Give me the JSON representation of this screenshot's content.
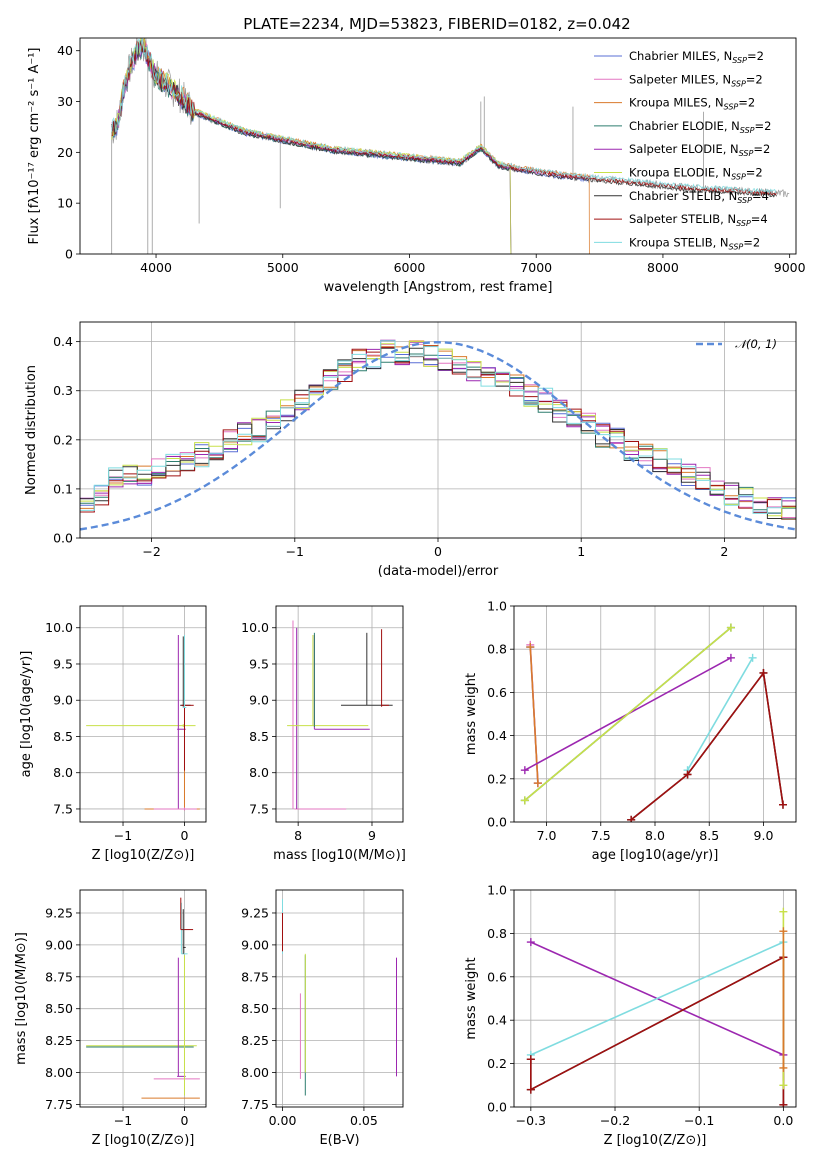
{
  "colors": {
    "chabrier_miles": "#5a6fd6",
    "salpeter_miles": "#e377c2",
    "kroupa_miles": "#d97a2b",
    "chabrier_elodie": "#2e7d6f",
    "salpeter_elodie": "#9c27b0",
    "kroupa_elodie": "#c8e04a",
    "chabrier_stelib": "#333333",
    "salpeter_stelib": "#a01010",
    "kroupa_stelib": "#7fdce0",
    "gaussian": "#5b8bd9",
    "grid": "#b0b0b0"
  },
  "chart_data": [
    {
      "id": "spectrum",
      "type": "line",
      "title": "PLATE=2234, MJD=53823, FIBERID=0182, z=0.042",
      "xlabel": "wavelength [Angstrom, rest frame]",
      "ylabel": "Flux [fλ10⁻¹⁷ erg cm⁻² s⁻¹ A⁻¹]",
      "xlim": [
        3400,
        9050
      ],
      "ylim": [
        0,
        42.5
      ],
      "xticks": [
        4000,
        5000,
        6000,
        7000,
        8000,
        9000
      ],
      "yticks": [
        0,
        10,
        20,
        30,
        40
      ],
      "legend_placement": "top-right",
      "observed": {
        "color": "#999999",
        "x": [
          3650,
          3700,
          3750,
          3800,
          3850,
          3900,
          3950,
          4000,
          4100,
          4200,
          4300,
          4400,
          4500,
          4600,
          4700,
          4800,
          4900,
          5000,
          5200,
          5400,
          5600,
          5800,
          6000,
          6200,
          6400,
          6563,
          6700,
          6800,
          7000,
          7200,
          7400,
          7600,
          7800,
          8000,
          8200,
          8400,
          8600,
          8800,
          9000
        ],
        "y": [
          24,
          26,
          33,
          37,
          40,
          41,
          38,
          35,
          33,
          31,
          28,
          27,
          26,
          25,
          24,
          23.5,
          23,
          22.5,
          21.5,
          20.5,
          20,
          19.5,
          19,
          18.5,
          18,
          21,
          17.5,
          17,
          16.2,
          15.5,
          15,
          14.5,
          14,
          13.5,
          13,
          12.7,
          12.4,
          12.1,
          11.8
        ]
      },
      "spikes": [
        {
          "x": 3650,
          "y": 0
        },
        {
          "x": 3935,
          "y": 0
        },
        {
          "x": 3970,
          "y": 0
        },
        {
          "x": 4340,
          "y": 6
        },
        {
          "x": 4980,
          "y": 9
        },
        {
          "x": 6563,
          "y": 30
        },
        {
          "x": 6590,
          "y": 31
        },
        {
          "x": 7290,
          "y": 29
        },
        {
          "x": 8320,
          "y": 28
        }
      ],
      "series": [
        {
          "name": "Chabrier MILES, N_SSP=2",
          "color_key": "chabrier_miles",
          "end": 7420,
          "drop": false
        },
        {
          "name": "Salpeter MILES, N_SSP=2",
          "color_key": "salpeter_miles",
          "end": 7420,
          "drop": false
        },
        {
          "name": "Kroupa MILES, N_SSP=2",
          "color_key": "kroupa_miles",
          "end": 7420,
          "drop": true
        },
        {
          "name": "Chabrier ELODIE, N_SSP=2",
          "color_key": "chabrier_elodie",
          "end": 6800,
          "drop": true
        },
        {
          "name": "Salpeter ELODIE, N_SSP=2",
          "color_key": "salpeter_elodie",
          "end": 6800,
          "drop": true
        },
        {
          "name": "Kroupa ELODIE, N_SSP=2",
          "color_key": "kroupa_elodie",
          "end": 6800,
          "drop": true
        },
        {
          "name": "Chabrier STELIB, N_SSP=4",
          "color_key": "chabrier_stelib",
          "end": 8900,
          "drop": false
        },
        {
          "name": "Salpeter STELIB, N_SSP=4",
          "color_key": "salpeter_stelib",
          "end": 8900,
          "drop": false
        },
        {
          "name": "Kroupa STELIB, N_SSP=2",
          "color_key": "kroupa_stelib",
          "end": 8900,
          "drop": false
        }
      ]
    },
    {
      "id": "residuals",
      "type": "line",
      "xlabel": "(data-model)/error",
      "ylabel": "Normed distribution",
      "xlim": [
        -2.5,
        2.5
      ],
      "ylim": [
        0,
        0.44
      ],
      "xticks": [
        -2,
        -1,
        0,
        1,
        2
      ],
      "yticks": [
        0.0,
        0.1,
        0.2,
        0.3,
        0.4
      ],
      "legend": "𝒩(0, 1)",
      "legend_placement": "top-right",
      "bin_width": 0.1,
      "base_hist": [
        0.07,
        0.09,
        0.12,
        0.13,
        0.13,
        0.14,
        0.15,
        0.16,
        0.17,
        0.18,
        0.2,
        0.21,
        0.22,
        0.24,
        0.26,
        0.28,
        0.3,
        0.32,
        0.34,
        0.36,
        0.37,
        0.38,
        0.37,
        0.38,
        0.37,
        0.36,
        0.35,
        0.34,
        0.33,
        0.32,
        0.31,
        0.29,
        0.28,
        0.26,
        0.25,
        0.23,
        0.21,
        0.2,
        0.18,
        0.17,
        0.16,
        0.14,
        0.13,
        0.12,
        0.1,
        0.09,
        0.08,
        0.07,
        0.06,
        0.06
      ]
    },
    {
      "id": "z_age",
      "type": "scatter",
      "xlabel": "Z [log10(Z/Z⊙)]",
      "ylabel": "age  [log10(age/yr)]",
      "xlim": [
        -1.7,
        0.35
      ],
      "ylim": [
        7.32,
        10.3
      ],
      "xticks": [
        -1,
        0
      ],
      "yticks": [
        7.5,
        8.0,
        8.5,
        9.0,
        9.5,
        10.0
      ]
    },
    {
      "id": "mass_age",
      "type": "scatter",
      "xlabel": "mass [log10(M/M⊙)]",
      "ylabel": "",
      "xlim": [
        7.7,
        9.42
      ],
      "ylim": [
        7.32,
        10.3
      ],
      "xticks": [
        8,
        9
      ],
      "yticks": [
        7.5,
        8.0,
        8.5,
        9.0,
        9.5,
        10.0
      ]
    },
    {
      "id": "age_weight",
      "type": "line",
      "xlabel": "age  [log10(age/yr)]",
      "ylabel": "mass weight",
      "xlim": [
        6.7,
        9.3
      ],
      "ylim": [
        0,
        1.0
      ],
      "xticks": [
        7.0,
        7.5,
        8.0,
        8.5,
        9.0
      ],
      "yticks": [
        0.0,
        0.2,
        0.4,
        0.6,
        0.8,
        1.0
      ],
      "series": [
        {
          "color_key": "chabrier_miles",
          "x": [
            6.85,
            6.92
          ],
          "y": [
            0.81,
            0.18
          ]
        },
        {
          "color_key": "salpeter_miles",
          "x": [
            6.85,
            6.92
          ],
          "y": [
            0.82,
            0.18
          ]
        },
        {
          "color_key": "kroupa_miles",
          "x": [
            6.85,
            6.92
          ],
          "y": [
            0.81,
            0.18
          ]
        },
        {
          "color_key": "chabrier_elodie",
          "x": [
            6.8,
            8.7
          ],
          "y": [
            0.1,
            0.9
          ]
        },
        {
          "color_key": "salpeter_elodie",
          "x": [
            6.8,
            8.7
          ],
          "y": [
            0.24,
            0.76
          ]
        },
        {
          "color_key": "kroupa_elodie",
          "x": [
            6.8,
            8.7
          ],
          "y": [
            0.1,
            0.9
          ]
        },
        {
          "color_key": "kroupa_stelib",
          "x": [
            8.3,
            8.9
          ],
          "y": [
            0.24,
            0.76
          ]
        },
        {
          "color_key": "chabrier_stelib",
          "x": [
            7.78,
            8.3,
            9.0,
            9.18
          ],
          "y": [
            0.01,
            0.22,
            0.69,
            0.08
          ]
        },
        {
          "color_key": "salpeter_stelib",
          "x": [
            7.78,
            8.3,
            9.0,
            9.18
          ],
          "y": [
            0.01,
            0.22,
            0.69,
            0.08
          ]
        }
      ]
    },
    {
      "id": "z_mass",
      "type": "scatter",
      "xlabel": "Z [log10(Z/Z⊙)]",
      "ylabel": "mass [log10(M/M⊙)]",
      "xlim": [
        -1.7,
        0.35
      ],
      "ylim": [
        7.73,
        9.43
      ],
      "xticks": [
        -1,
        0
      ],
      "yticks": [
        7.75,
        8.0,
        8.25,
        8.5,
        8.75,
        9.0,
        9.25
      ]
    },
    {
      "id": "ebv_mass",
      "type": "scatter",
      "xlabel": "E(B-V)",
      "ylabel": "",
      "xlim": [
        -0.004,
        0.074
      ],
      "ylim": [
        7.73,
        9.43
      ],
      "xticks": [
        0.0,
        0.05
      ],
      "yticks": [
        7.75,
        8.0,
        8.25,
        8.5,
        8.75,
        9.0,
        9.25
      ]
    },
    {
      "id": "z_weight",
      "type": "line",
      "xlabel": "Z [log10(Z/Z⊙)]",
      "ylabel": "mass weight",
      "xlim": [
        -0.32,
        0.015
      ],
      "ylim": [
        0,
        1.0
      ],
      "xticks": [
        -0.3,
        -0.2,
        -0.1,
        0.0
      ],
      "yticks": [
        0.0,
        0.2,
        0.4,
        0.6,
        0.8,
        1.0
      ],
      "series": [
        {
          "color_key": "salpeter_elodie",
          "x": [
            -0.3,
            0.0
          ],
          "y": [
            0.76,
            0.24
          ]
        },
        {
          "color_key": "kroupa_stelib",
          "x": [
            -0.3,
            0.0
          ],
          "y": [
            0.24,
            0.76
          ]
        },
        {
          "color_key": "chabrier_stelib",
          "x": [
            -0.3,
            -0.3,
            0.0,
            0.0
          ],
          "y": [
            0.22,
            0.08,
            0.69,
            0.01
          ]
        },
        {
          "color_key": "salpeter_stelib",
          "x": [
            -0.3,
            -0.3,
            0.0,
            0.0
          ],
          "y": [
            0.22,
            0.08,
            0.69,
            0.01
          ]
        },
        {
          "color_key": "kroupa_elodie",
          "x": [
            0.0,
            0.0
          ],
          "y": [
            0.1,
            0.9
          ]
        },
        {
          "color_key": "kroupa_miles",
          "x": [
            0.0,
            0.0
          ],
          "y": [
            0.18,
            0.81
          ]
        }
      ]
    }
  ]
}
